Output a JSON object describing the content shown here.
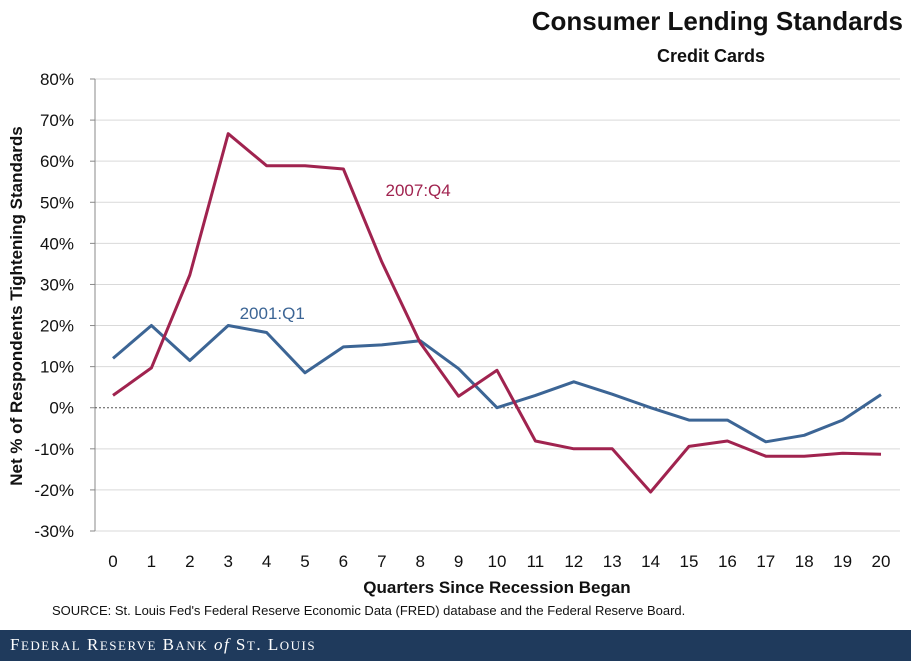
{
  "chart_data": {
    "type": "line",
    "title": "Consumer Lending Standards",
    "subtitle": "Credit Cards",
    "xlabel": "Quarters Since Recession Began",
    "ylabel": "Net % of Respondents Tightening Standards",
    "x": [
      0,
      1,
      2,
      3,
      4,
      5,
      6,
      7,
      8,
      9,
      10,
      11,
      12,
      13,
      14,
      15,
      16,
      17,
      18,
      19,
      20
    ],
    "y_ticks": [
      "80%",
      "70%",
      "60%",
      "50%",
      "40%",
      "30%",
      "20%",
      "10%",
      "0%",
      "-10%",
      "-20%",
      "-30%"
    ],
    "ylim": [
      -30,
      80
    ],
    "series": [
      {
        "name": "2001:Q1",
        "color": "#3c6595",
        "values": [
          12,
          20,
          11.5,
          20,
          18.3,
          8.5,
          14.8,
          15.3,
          16.3,
          9.5,
          0,
          3,
          6.3,
          3.3,
          0,
          -3,
          -3,
          -8.3,
          -6.7,
          -3,
          3.2
        ]
      },
      {
        "name": "2007:Q4",
        "color": "#a0234f",
        "values": [
          3,
          9.7,
          32.3,
          66.7,
          58.9,
          58.9,
          58.1,
          35.5,
          15.8,
          2.8,
          9.1,
          -8.1,
          -10,
          -10,
          -20.5,
          -9.4,
          -8.1,
          -11.8,
          -11.8,
          -11.1,
          -11.3
        ]
      }
    ],
    "annotations": [
      {
        "text": "2007:Q4",
        "series": "2007:Q4",
        "x": 7.8,
        "y": 53
      },
      {
        "text": "2001:Q1",
        "series": "2001:Q1",
        "x": 4,
        "y": 23
      }
    ],
    "legend": "none",
    "grid": true
  },
  "source": "SOURCE: St. Louis Fed's Federal Reserve Economic Data (FRED) database and the Federal Reserve Board.",
  "footer": "Federal Reserve Bank of St. Louis"
}
